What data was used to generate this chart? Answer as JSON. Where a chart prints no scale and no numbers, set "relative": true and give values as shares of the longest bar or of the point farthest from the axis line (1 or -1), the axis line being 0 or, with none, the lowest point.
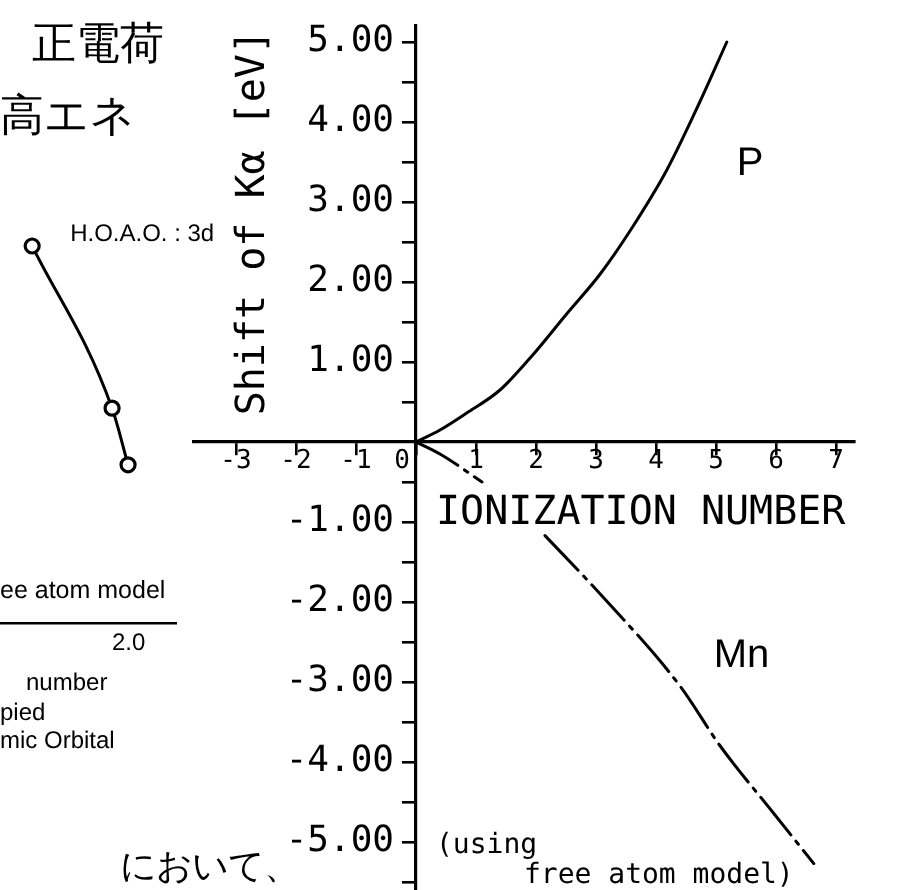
{
  "chart_data": [
    {
      "type": "line",
      "relative": true,
      "categories": [
        null,
        null,
        null,
        null,
        null,
        null,
        null,
        null,
        null,
        null,
        null,
        null
      ],
      "series": [
        {
          "name": "H.O.A.O. : 3d",
          "color": "#000000",
          "values": [
            null,
            null,
            1,
            null,
            null,
            null,
            null,
            0.57,
            0.42,
            null,
            null,
            null
          ]
        }
      ],
      "marker": "circle",
      "xlabel": "number",
      "annotations": [
        "正電荷",
        "高エネ",
        "ee atom model",
        "2.0",
        "pied",
        "mic Orbital",
        "において、"
      ]
    },
    {
      "type": "line",
      "xlabel": "IONIZATION NUMBER",
      "ylabel": "Shift of Kα [eV]",
      "xlim": [
        -3.7,
        7.3
      ],
      "ylim": [
        -5.6,
        5.2
      ],
      "xticks": [
        -3,
        -2,
        -1,
        0,
        1,
        2,
        3,
        4,
        5,
        6,
        7
      ],
      "yticks": [
        {
          "value": -5.5,
          "label": null
        },
        {
          "value": -5,
          "label": "-5.00"
        },
        {
          "value": -4.5,
          "label": null
        },
        {
          "value": -4,
          "label": "-4.00"
        },
        {
          "value": -3.5,
          "label": null
        },
        {
          "value": -3,
          "label": "-3.00"
        },
        {
          "value": -2.5,
          "label": null
        },
        {
          "value": -2,
          "label": "-2.00"
        },
        {
          "value": -1.5,
          "label": null
        },
        {
          "value": -1,
          "label": "-1.00"
        },
        {
          "value": -0.5,
          "label": null
        },
        {
          "value": 0.5,
          "label": null
        },
        {
          "value": 1,
          "label": "1.00"
        },
        {
          "value": 1.5,
          "label": null
        },
        {
          "value": 2,
          "label": "2.00"
        },
        {
          "value": 2.5,
          "label": null
        },
        {
          "value": 3,
          "label": "3.00"
        },
        {
          "value": 3.5,
          "label": null
        },
        {
          "value": 4,
          "label": "4.00"
        },
        {
          "value": 4.5,
          "label": null
        },
        {
          "value": 5,
          "label": "5.00"
        }
      ],
      "series": [
        {
          "name": "P",
          "color": "#000000",
          "line_style": "solid",
          "x": [
            0,
            0.4,
            0.84,
            1.4,
            1.96,
            2.51,
            3.07,
            3.62,
            4.18,
            4.73,
            5.18
          ],
          "values": [
            0,
            0.15,
            0.36,
            0.65,
            1.1,
            1.6,
            2.1,
            2.7,
            3.4,
            4.25,
            5.0
          ]
        },
        {
          "name": "Mn",
          "color": "#000000",
          "line_style": "dashed",
          "x": [
            0,
            0.4,
            1.1,
            1.6,
            2.15,
            3.07,
            4.4,
            5.07,
            5.97,
            6.63
          ],
          "values": [
            0,
            -0.15,
            -0.5,
            null,
            -1.17,
            -1.9,
            -3.05,
            -3.8,
            -4.65,
            -5.27
          ]
        }
      ],
      "annotations": [
        "(using\nfree atom model)"
      ]
    }
  ]
}
